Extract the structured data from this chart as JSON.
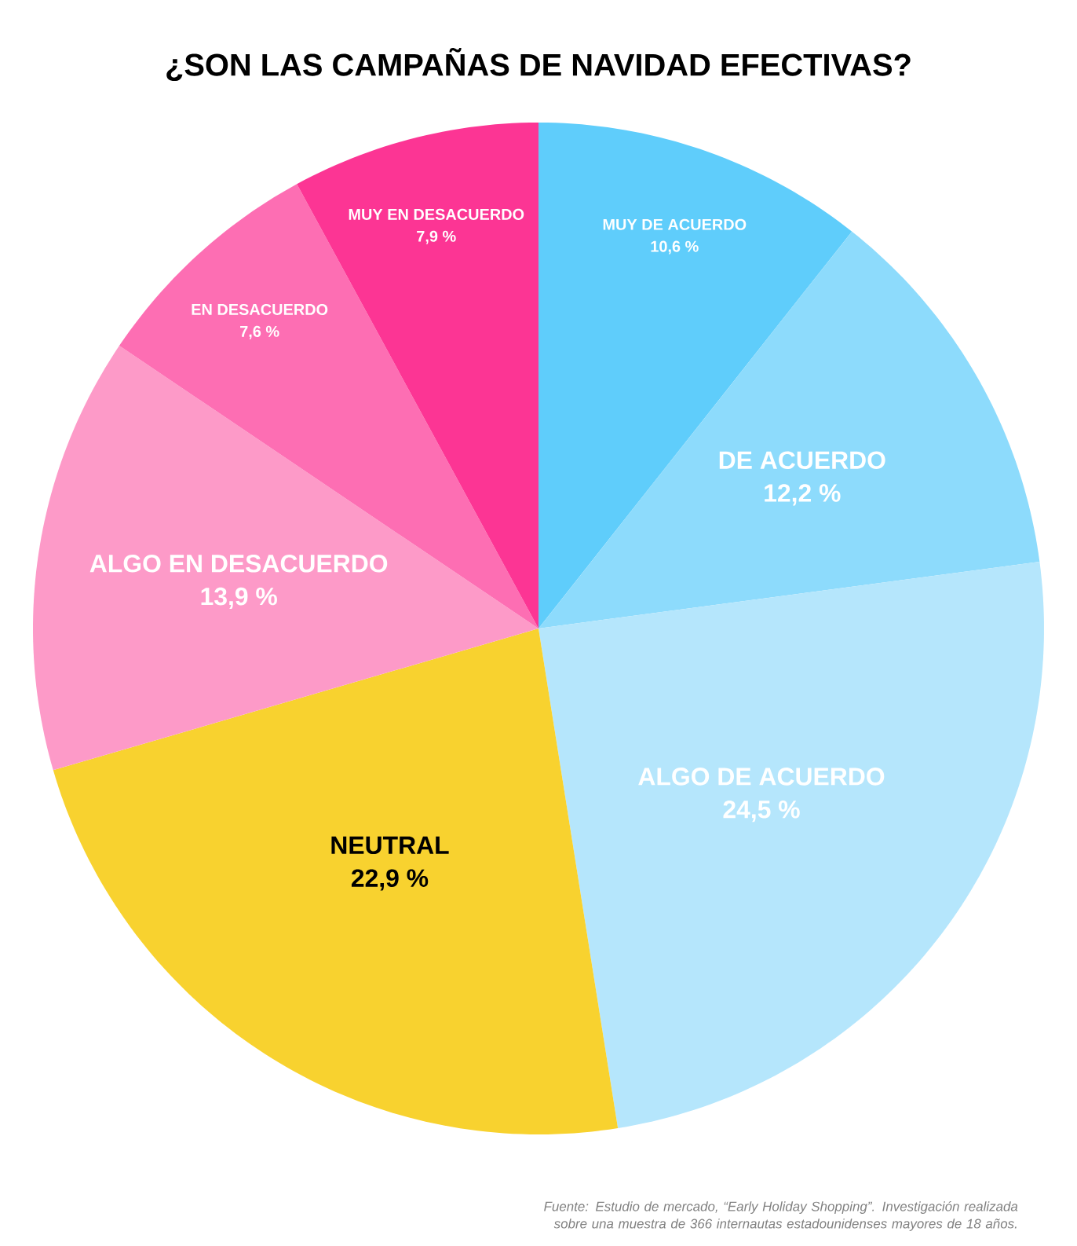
{
  "chart_data": {
    "type": "pie",
    "title": "¿SON LAS CAMPAÑAS DE NAVIDAD EFECTIVAS?",
    "categories": [
      "MUY DE ACUERDO",
      "DE ACUERDO",
      "ALGO DE ACUERDO",
      "NEUTRAL",
      "ALGO EN DESACUERDO",
      "EN DESACUERDO",
      "MUY EN DESACUERDO"
    ],
    "values": [
      10.6,
      12.2,
      24.5,
      22.9,
      13.9,
      7.6,
      7.9
    ],
    "value_labels": [
      "10,6 %",
      "12,2 %",
      "24,5 %",
      "22,9 %",
      "13,9 %",
      "7,6 %",
      "7,9 %"
    ],
    "colors": [
      "#5fcdfb",
      "#8ddbfc",
      "#b5e6fc",
      "#f8d22f",
      "#fd9ac8",
      "#fd6eb3",
      "#fc3594"
    ],
    "annotations": [
      "Fuente: Estudio de mercado, “Early Holiday Shopping”. Investigación realizada sobre una muestra de 366 internautas estadounidenses mayores de 18 años."
    ]
  }
}
